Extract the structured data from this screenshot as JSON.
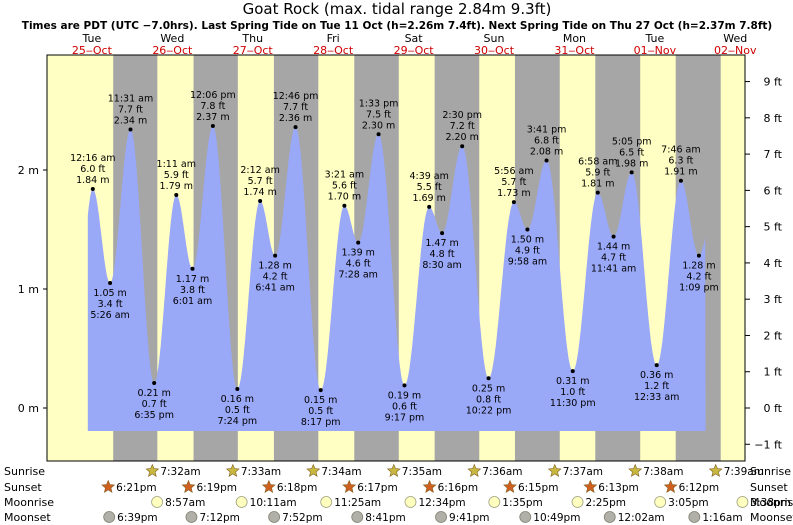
{
  "chart_data": {
    "type": "area",
    "title": "Goat Rock (max. tidal range 2.84m 9.3ft)",
    "subtitle": "Times are PDT (UTC −7.0hrs). Last Spring Tide on Tue 11 Oct (h=2.26m 7.4ft). Next Spring Tide on Thu 27 Oct (h=2.37m 7.8ft)",
    "left_axis": {
      "unit": "m",
      "ticks": [
        {
          "v": 0,
          "label": "0 m"
        },
        {
          "v": 1,
          "label": "1 m"
        },
        {
          "v": 2,
          "label": "2 m"
        }
      ],
      "ylim": [
        -0.2,
        2.85
      ]
    },
    "right_axis": {
      "unit": "ft",
      "ticks": [
        {
          "v": -1,
          "label": "−1 ft"
        },
        {
          "v": 0,
          "label": "0 ft"
        },
        {
          "v": 1,
          "label": "1 ft"
        },
        {
          "v": 2,
          "label": "2 ft"
        },
        {
          "v": 3,
          "label": "3 ft"
        },
        {
          "v": 4,
          "label": "4 ft"
        },
        {
          "v": 5,
          "label": "5 ft"
        },
        {
          "v": 6,
          "label": "6 ft"
        },
        {
          "v": 7,
          "label": "7 ft"
        },
        {
          "v": 8,
          "label": "8 ft"
        },
        {
          "v": 9,
          "label": "9 ft"
        }
      ]
    },
    "x_start_hour": 8.0,
    "x_end_hour": 216.3,
    "days": [
      {
        "day": "Tue",
        "date": "25‒Oct",
        "hour": 0
      },
      {
        "day": "Wed",
        "date": "26‒Oct",
        "hour": 24
      },
      {
        "day": "Thu",
        "date": "27‒Oct",
        "hour": 48
      },
      {
        "day": "Fri",
        "date": "28‒Oct",
        "hour": 72
      },
      {
        "day": "Sat",
        "date": "29‒Oct",
        "hour": 96
      },
      {
        "day": "Sun",
        "date": "30‒Oct",
        "hour": 120
      },
      {
        "day": "Mon",
        "date": "31‒Oct",
        "hour": 144
      },
      {
        "day": "Tue",
        "date": "01‒Nov",
        "hour": 168
      },
      {
        "day": "Wed",
        "date": "02‒Nov",
        "hour": 192
      }
    ],
    "tides": [
      {
        "hour": 12.27,
        "m": 1.84,
        "time": "12:16 am",
        "ft": "6.0 ft",
        "m_label": "1.84 m",
        "type": "high"
      },
      {
        "hour": 17.43,
        "m": 1.05,
        "time": "5:26 am",
        "ft": "3.4 ft",
        "m_label": "1.05 m",
        "type": "low"
      },
      {
        "hour": 23.52,
        "m": 2.34,
        "time": "11:31 am",
        "ft": "7.7 ft",
        "m_label": "2.34 m",
        "type": "high"
      },
      {
        "hour": 30.58,
        "m": 0.21,
        "time": "6:35 pm",
        "ft": "0.7 ft",
        "m_label": "0.21 m",
        "type": "low"
      },
      {
        "hour": 37.18,
        "m": 1.79,
        "time": "1:11 am",
        "ft": "5.9 ft",
        "m_label": "1.79 m",
        "type": "high"
      },
      {
        "hour": 42.02,
        "m": 1.17,
        "time": "6:01 am",
        "ft": "3.8 ft",
        "m_label": "1.17 m",
        "type": "low"
      },
      {
        "hour": 48.1,
        "m": 2.37,
        "time": "12:06 pm",
        "ft": "7.8 ft",
        "m_label": "2.37 m",
        "type": "high"
      },
      {
        "hour": 55.4,
        "m": 0.16,
        "time": "7:24 pm",
        "ft": "0.5 ft",
        "m_label": "0.16 m",
        "type": "low"
      },
      {
        "hour": 62.2,
        "m": 1.74,
        "time": "2:12 am",
        "ft": "5.7 ft",
        "m_label": "1.74 m",
        "type": "high"
      },
      {
        "hour": 66.68,
        "m": 1.28,
        "time": "6:41 am",
        "ft": "4.2 ft",
        "m_label": "1.28 m",
        "type": "low"
      },
      {
        "hour": 72.77,
        "m": 2.36,
        "time": "12:46 pm",
        "ft": "7.7 ft",
        "m_label": "2.36 m",
        "type": "high"
      },
      {
        "hour": 80.28,
        "m": 0.15,
        "time": "8:17 pm",
        "ft": "0.5 ft",
        "m_label": "0.15 m",
        "type": "low"
      },
      {
        "hour": 87.35,
        "m": 1.7,
        "time": "3:21 am",
        "ft": "5.6 ft",
        "m_label": "1.70 m",
        "type": "high"
      },
      {
        "hour": 91.47,
        "m": 1.39,
        "time": "7:28 am",
        "ft": "4.6 ft",
        "m_label": "1.39 m",
        "type": "low"
      },
      {
        "hour": 97.55,
        "m": 2.3,
        "time": "1:33 pm",
        "ft": "7.5 ft",
        "m_label": "2.30 m",
        "type": "high"
      },
      {
        "hour": 105.28,
        "m": 0.19,
        "time": "9:17 pm",
        "ft": "0.6 ft",
        "m_label": "0.19 m",
        "type": "low"
      },
      {
        "hour": 112.65,
        "m": 1.69,
        "time": "4:39 am",
        "ft": "5.5 ft",
        "m_label": "1.69 m",
        "type": "high"
      },
      {
        "hour": 116.5,
        "m": 1.47,
        "time": "8:30 am",
        "ft": "4.8 ft",
        "m_label": "1.47 m",
        "type": "low"
      },
      {
        "hour": 122.5,
        "m": 2.2,
        "time": "2:30 pm",
        "ft": "7.2 ft",
        "m_label": "2.20 m",
        "type": "high"
      },
      {
        "hour": 130.37,
        "m": 0.25,
        "time": "10:22 pm",
        "ft": "0.8 ft",
        "m_label": "0.25 m",
        "type": "low"
      },
      {
        "hour": 137.93,
        "m": 1.73,
        "time": "5:56 am",
        "ft": "5.7 ft",
        "m_label": "1.73 m",
        "type": "high"
      },
      {
        "hour": 141.97,
        "m": 1.5,
        "time": "9:58 am",
        "ft": "4.9 ft",
        "m_label": "1.50 m",
        "type": "low"
      },
      {
        "hour": 147.68,
        "m": 2.08,
        "time": "3:41 pm",
        "ft": "6.8 ft",
        "m_label": "2.08 m",
        "type": "high"
      },
      {
        "hour": 155.5,
        "m": 0.31,
        "time": "11:30 pm",
        "ft": "1.0 ft",
        "m_label": "0.31 m",
        "type": "low"
      },
      {
        "hour": 162.97,
        "m": 1.81,
        "time": "6:58 am",
        "ft": "5.9 ft",
        "m_label": "1.81 m",
        "type": "high"
      },
      {
        "hour": 167.68,
        "m": 1.44,
        "time": "11:41 am",
        "ft": "4.7 ft",
        "m_label": "1.44 m",
        "type": "low"
      },
      {
        "hour": 173.08,
        "m": 1.98,
        "time": "5:05 pm",
        "ft": "6.5 ft",
        "m_label": "1.98 m",
        "type": "high"
      },
      {
        "hour": 180.55,
        "m": 0.36,
        "time": "12:33 am",
        "ft": "1.2 ft",
        "m_label": "0.36 m",
        "type": "low"
      },
      {
        "hour": 187.77,
        "m": 1.91,
        "time": "7:46 am",
        "ft": "6.3 ft",
        "m_label": "1.91 m",
        "type": "high"
      },
      {
        "hour": 193.15,
        "m": 1.28,
        "time": "1:09 pm",
        "ft": "4.2 ft",
        "m_label": "1.28 m",
        "type": "low"
      }
    ],
    "daylight": [
      {
        "rise": 31.53,
        "set": 42.33
      },
      {
        "rise": 55.55,
        "set": 66.32
      },
      {
        "rise": 79.57,
        "set": 90.3
      },
      {
        "rise": 103.58,
        "set": 114.28
      },
      {
        "rise": 127.6,
        "set": 138.25
      },
      {
        "rise": 151.62,
        "set": 162.22
      },
      {
        "rise": 175.63,
        "set": 186.22
      },
      {
        "rise": 199.65,
        "set": 210.2
      }
    ],
    "sunrise": [
      {
        "hour": 31.53,
        "label": "7:32am"
      },
      {
        "hour": 55.55,
        "label": "7:33am"
      },
      {
        "hour": 79.57,
        "label": "7:34am"
      },
      {
        "hour": 103.58,
        "label": "7:35am"
      },
      {
        "hour": 127.6,
        "label": "7:36am"
      },
      {
        "hour": 151.62,
        "label": "7:37am"
      },
      {
        "hour": 175.63,
        "label": "7:38am"
      },
      {
        "hour": 199.65,
        "label": "7:39am"
      }
    ],
    "sunset": [
      {
        "hour": 18.35,
        "label": "6:21pm"
      },
      {
        "hour": 42.32,
        "label": "6:19pm"
      },
      {
        "hour": 66.3,
        "label": "6:18pm"
      },
      {
        "hour": 90.28,
        "label": "6:17pm"
      },
      {
        "hour": 114.27,
        "label": "6:16pm"
      },
      {
        "hour": 138.25,
        "label": "6:15pm"
      },
      {
        "hour": 162.22,
        "label": "6:13pm"
      },
      {
        "hour": 186.2,
        "label": "6:12pm"
      }
    ],
    "moonrise": [
      {
        "hour": 32.95,
        "label": "8:57am"
      },
      {
        "hour": 58.18,
        "label": "10:11am"
      },
      {
        "hour": 83.42,
        "label": "11:25am"
      },
      {
        "hour": 108.57,
        "label": "12:34pm"
      },
      {
        "hour": 133.58,
        "label": "1:35pm"
      },
      {
        "hour": 158.42,
        "label": "2:25pm"
      },
      {
        "hour": 183.08,
        "label": "3:05pm"
      },
      {
        "hour": 207.63,
        "label": "3:38pm"
      }
    ],
    "moonset": [
      {
        "hour": 18.65,
        "label": "6:39pm"
      },
      {
        "hour": 43.2,
        "label": "7:12pm"
      },
      {
        "hour": 67.87,
        "label": "7:52pm"
      },
      {
        "hour": 92.68,
        "label": "8:41pm"
      },
      {
        "hour": 117.68,
        "label": "9:41pm"
      },
      {
        "hour": 142.82,
        "label": "10:49pm"
      },
      {
        "hour": 168.03,
        "label": "12:02am"
      },
      {
        "hour": 193.27,
        "label": "1:16am"
      }
    ],
    "row_labels": {
      "sunrise": "Sunrise",
      "sunset": "Sunset",
      "moonrise": "Moonrise",
      "moonset": "Moonset"
    },
    "colors": {
      "water": "#9aa8f8",
      "night": "#a6a6a6",
      "day": "#ffffc4",
      "outside": "#a6a6a6",
      "header_day": "#000000",
      "header_date": "#d00000",
      "sun_star": "#c8b840",
      "sunset_star": "#d06020",
      "moonrise_fill": "#ffffc0",
      "moonset_fill": "#b0b0a8"
    }
  }
}
